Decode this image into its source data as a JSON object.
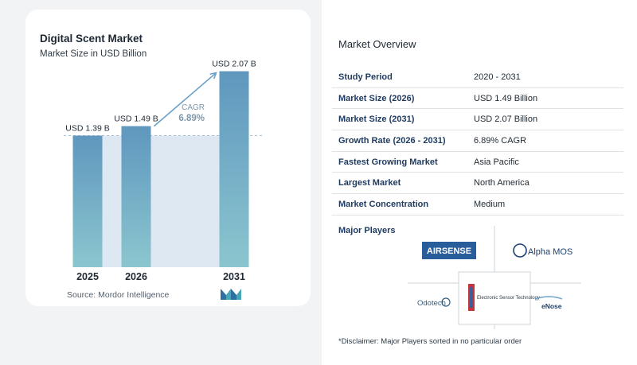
{
  "chart_data": {
    "type": "bar",
    "title": "Digital Scent Market",
    "subtitle": "Market Size in USD Billion",
    "categories": [
      "2025",
      "2026",
      "2031"
    ],
    "values": [
      1.39,
      1.49,
      2.07
    ],
    "value_labels": [
      "USD 1.39 B",
      "USD 1.49 B",
      "USD 2.07 B"
    ],
    "cagr_label": "CAGR",
    "cagr_value": "6.89%",
    "ylim": [
      0,
      2.1
    ],
    "grid": false,
    "reference_line_value": 1.39,
    "colors": {
      "bar_top": "#5f97be",
      "bar_bottom": "#8bc6cf",
      "highlight": "#dde8f2",
      "arrow": "#6aa0c8",
      "cagr_text": "#7d97ad"
    }
  },
  "source": "Source:  Mordor Intelligence",
  "overview": {
    "title": "Market Overview",
    "rows": [
      {
        "label": "Study Period",
        "value": "2020 - 2031"
      },
      {
        "label": "Market Size (2026)",
        "value": "USD 1.49 Billion"
      },
      {
        "label": "Market Size (2031)",
        "value": "USD 2.07 Billion"
      },
      {
        "label": "Growth Rate (2026 - 2031)",
        "value": "6.89% CAGR"
      },
      {
        "label": "Fastest Growing Market",
        "value": "Asia Pacific"
      },
      {
        "label": "Largest Market",
        "value": "North America"
      },
      {
        "label": "Market Concentration",
        "value": "Medium"
      }
    ]
  },
  "major_players": {
    "label": "Major Players",
    "logos": {
      "airsense": "AIRSENSE",
      "alpha_mos": "Alpha MOS",
      "odotech": "Odotech",
      "est": "Electronic Sensor Technology",
      "enose": "eNose"
    }
  },
  "disclaimer": "*Disclaimer: Major Players sorted in no particular order"
}
